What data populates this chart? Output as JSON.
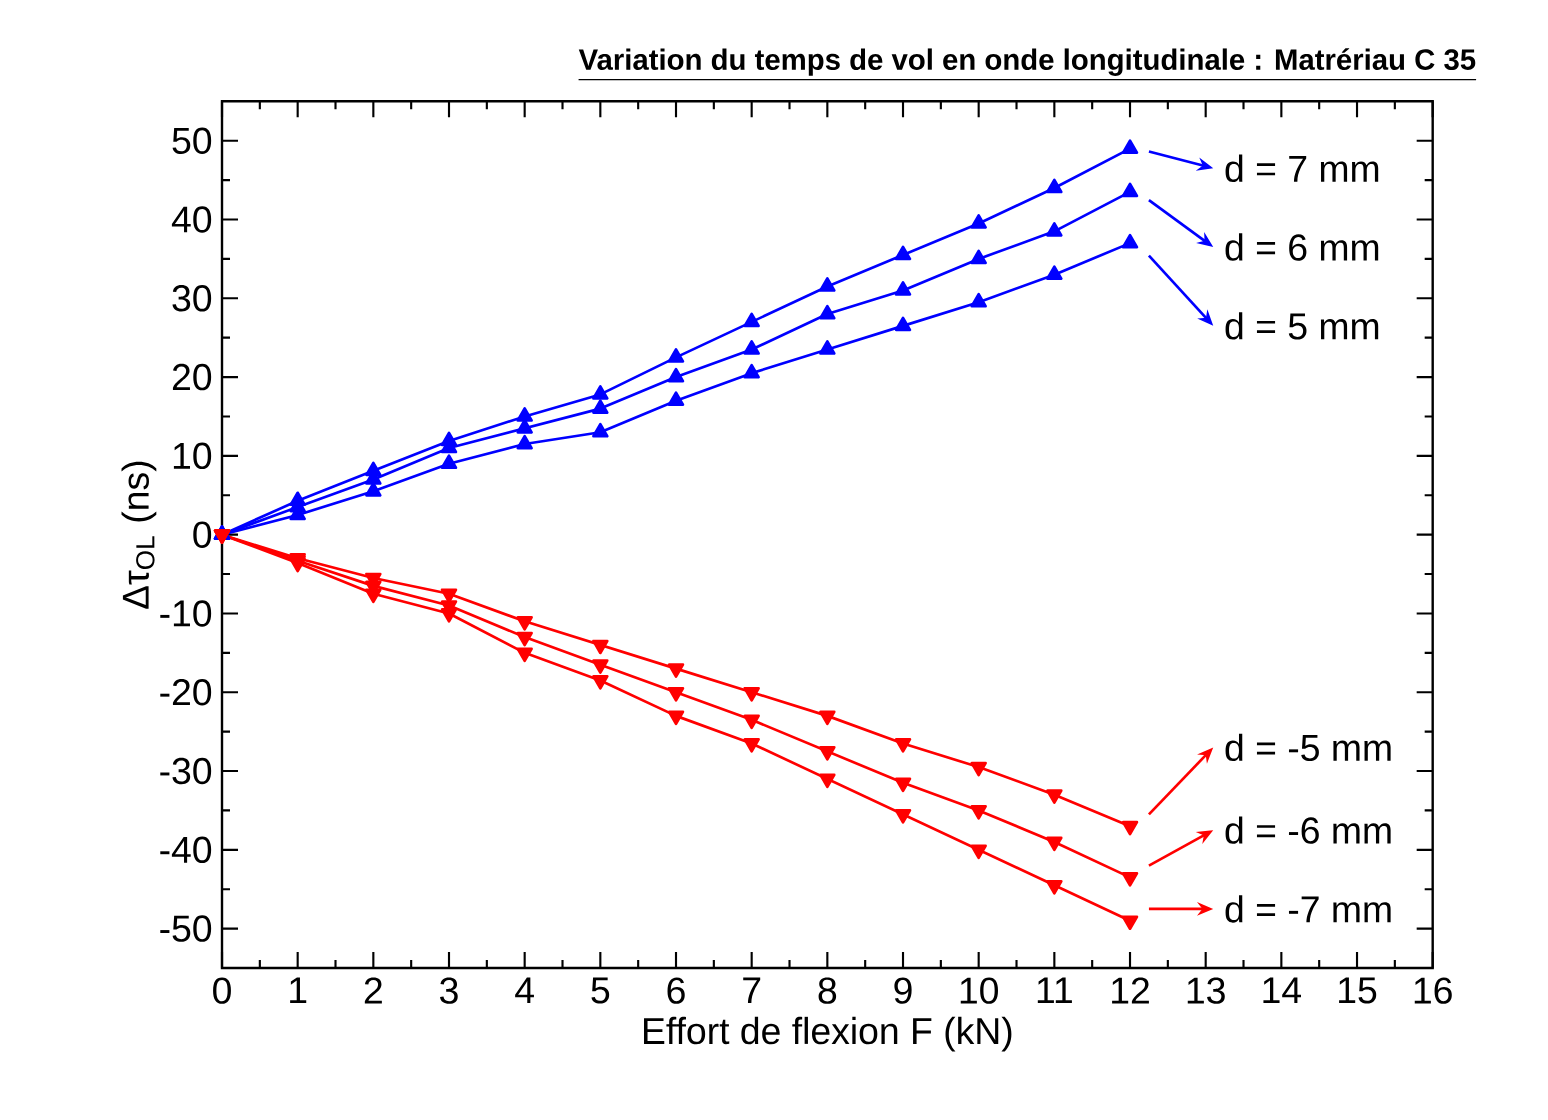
{
  "chart_data": {
    "type": "line",
    "title": "Variation du temps de vol en onde longitudinale : Matrériau C 35",
    "xlabel": "Effort de flexion F (kN)",
    "ylabel": "Δτ$_{OL}$ (ns)",
    "x": [
      0,
      1,
      2,
      3,
      4,
      5,
      6,
      7,
      8,
      9,
      10,
      11,
      12
    ],
    "series": [
      {
        "color": "#0000ff",
        "values": [
          0,
          4.3,
          8.1,
          11.9,
          15,
          17.8,
          22.5,
          27,
          31.5,
          35.5,
          39.5,
          44,
          49
        ]
      },
      {
        "color": "#0000ff",
        "values": [
          0,
          3.5,
          7,
          11,
          13.5,
          16,
          20,
          23.5,
          28,
          31,
          35,
          38.5,
          43.5
        ]
      },
      {
        "color": "#0000ff",
        "values": [
          0,
          2.5,
          5.5,
          9,
          11.5,
          13,
          17,
          20.5,
          23.5,
          26.5,
          29.5,
          33,
          37
        ]
      },
      {
        "color": "#ff0000",
        "values": [
          0,
          -3,
          -5.5,
          -7.5,
          -11,
          -14,
          -17,
          -20,
          -23,
          -26.5,
          -29.5,
          -33,
          -37
        ]
      },
      {
        "color": "#ff0000",
        "values": [
          0,
          -3.3,
          -6.5,
          -9,
          -13,
          -16.5,
          -20,
          -23.5,
          -27.5,
          -31.5,
          -35,
          -39,
          -43.5
        ]
      },
      {
        "color": "#ff0000",
        "values": [
          0,
          -3.6,
          -7.5,
          -10,
          -15,
          -18.5,
          -23,
          -26.5,
          -31,
          -35.5,
          -40,
          -44.5,
          -49
        ]
      }
    ],
    "xlim": [
      0,
      16
    ],
    "xticks": [
      0,
      1,
      2,
      3,
      4,
      5,
      6,
      7,
      8,
      9,
      10,
      11,
      12,
      13,
      14,
      15,
      16
    ],
    "ylim": [
      -55,
      55
    ],
    "yticks": [
      -50,
      -40,
      -30,
      -20,
      -10,
      0,
      10,
      20,
      30,
      40,
      50
    ],
    "annotations": [
      "d = 7 mm",
      "d = 6 mm",
      "d = 5 mm",
      "d = -5 mm",
      "d = -6 mm",
      "d = -7 mm"
    ],
    "grid": false,
    "marker": "triangle",
    "line_style": "solid"
  }
}
